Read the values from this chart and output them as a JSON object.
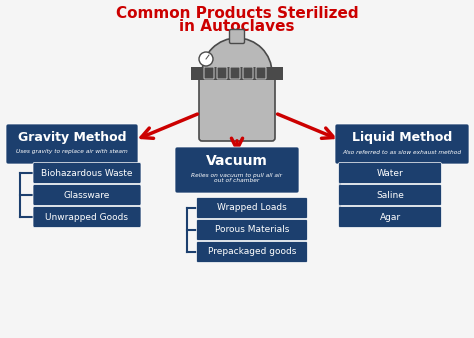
{
  "title_line1": "Common Products Sterilized",
  "title_line2": "in Autoclaves",
  "title_color": "#cc0000",
  "bg_color": "#f5f5f5",
  "box_color": "#1c3f6e",
  "box_text_color": "#ffffff",
  "arrow_color": "#cc0000",
  "gravity_title": "Gravity Method",
  "gravity_subtitle": "Uses gravity to replace air with steam",
  "gravity_items": [
    "Biohazardous Waste",
    "Glassware",
    "Unwrapped Goods"
  ],
  "vacuum_title": "Vacuum",
  "vacuum_subtitle": "Relies on vacuum to pull all air\nout of chamber",
  "vacuum_items": [
    "Wrapped Loads",
    "Porous Materials",
    "Prepackaged goods"
  ],
  "liquid_title": "Liquid Method",
  "liquid_subtitle": "Also referred to as slow exhaust method",
  "liquid_items": [
    "Water",
    "Saline",
    "Agar"
  ],
  "autoclave_body_color": "#b8b8b8",
  "autoclave_dark_color": "#4a4a4a",
  "connector_color": "#1c3f6e",
  "line_color": "#1c3f6e"
}
